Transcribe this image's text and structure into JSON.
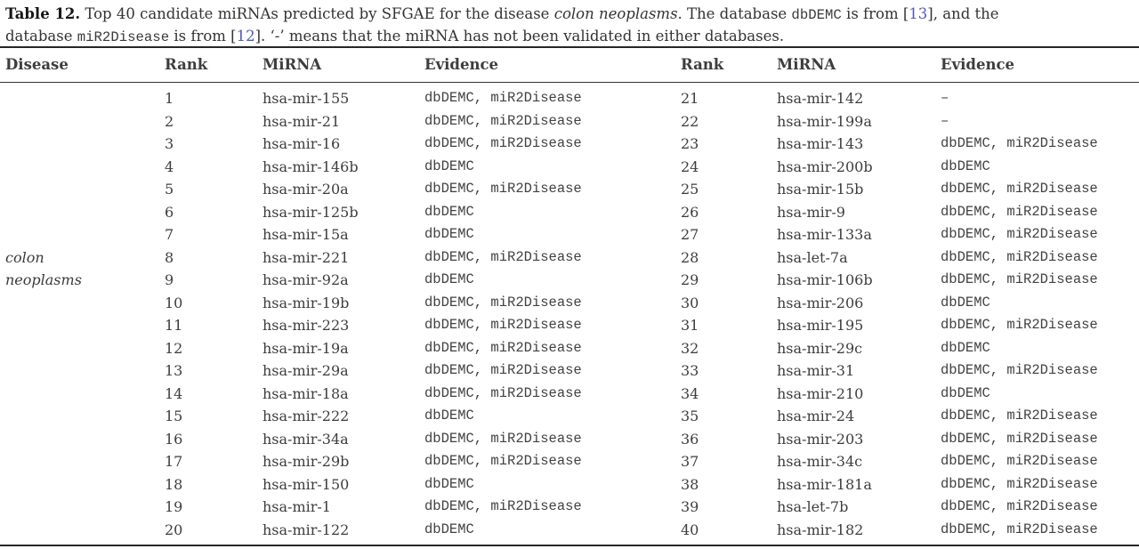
{
  "colors": {
    "link_blue": "#5359b9",
    "rule_dark": "#262626",
    "text_body": "#3d3d3d"
  },
  "caption": {
    "line1": {
      "label": "Table 12.",
      "text_a": " Top 40 candidate miRNAs predicted by SFGAE for the disease ",
      "disease": "colon neoplasms",
      "text_b": ". The database ",
      "db": "dbDEMC",
      "text_c": " is from [",
      "ref": "13",
      "text_d": "], and the"
    },
    "line2": {
      "text_a": "database ",
      "db": "miR2Disease",
      "text_b": " is from [",
      "ref": "12",
      "text_c": "]. ‘-’ means that the miRNA has not been validated in either databases."
    }
  },
  "table": {
    "headers": {
      "disease": "Disease",
      "rank_left": "Rank",
      "mirna_left": "MiRNA",
      "evidence_left": "Evidence",
      "rank_right": "Rank",
      "mirna_right": "MiRNA",
      "evidence_right": "Evidence"
    },
    "rows": [
      {
        "rank": "1",
        "mirna": "hsa-mir-155",
        "evidence": "dbDEMC, miR2Disease",
        "rank2": "21",
        "mirna2": "hsa-mir-142",
        "evidence2": "–"
      },
      {
        "rank": "2",
        "mirna": "hsa-mir-21",
        "evidence": "dbDEMC, miR2Disease",
        "rank2": "22",
        "mirna2": "hsa-mir-199a",
        "evidence2": "–"
      },
      {
        "rank": "3",
        "mirna": "hsa-mir-16",
        "evidence": "dbDEMC, miR2Disease",
        "rank2": "23",
        "mirna2": "hsa-mir-143",
        "evidence2": "dbDEMC, miR2Disease"
      },
      {
        "rank": "4",
        "mirna": "hsa-mir-146b",
        "evidence": "dbDEMC",
        "rank2": "24",
        "mirna2": "hsa-mir-200b",
        "evidence2": "dbDEMC"
      },
      {
        "rank": "5",
        "mirna": "hsa-mir-20a",
        "evidence": "dbDEMC, miR2Disease",
        "rank2": "25",
        "mirna2": "hsa-mir-15b",
        "evidence2": "dbDEMC, miR2Disease"
      },
      {
        "rank": "6",
        "mirna": "hsa-mir-125b",
        "evidence": "dbDEMC",
        "rank2": "26",
        "mirna2": "hsa-mir-9",
        "evidence2": "dbDEMC, miR2Disease"
      },
      {
        "rank": "7",
        "mirna": "hsa-mir-15a",
        "evidence": "dbDEMC",
        "rank2": "27",
        "mirna2": "hsa-mir-133a",
        "evidence2": "dbDEMC, miR2Disease"
      },
      {
        "disease": "colon",
        "rank": "8",
        "mirna": "hsa-mir-221",
        "evidence": "dbDEMC, miR2Disease",
        "rank2": "28",
        "mirna2": "hsa-let-7a",
        "evidence2": "dbDEMC, miR2Disease"
      },
      {
        "disease": "neoplasms",
        "rank": "9",
        "mirna": "hsa-mir-92a",
        "evidence": "dbDEMC",
        "rank2": "29",
        "mirna2": "hsa-mir-106b",
        "evidence2": "dbDEMC, miR2Disease"
      },
      {
        "rank": "10",
        "mirna": "hsa-mir-19b",
        "evidence": "dbDEMC, miR2Disease",
        "rank2": "30",
        "mirna2": "hsa-mir-206",
        "evidence2": "dbDEMC"
      },
      {
        "rank": "11",
        "mirna": "hsa-mir-223",
        "evidence": "dbDEMC, miR2Disease",
        "rank2": "31",
        "mirna2": "hsa-mir-195",
        "evidence2": "dbDEMC, miR2Disease"
      },
      {
        "rank": "12",
        "mirna": "hsa-mir-19a",
        "evidence": "dbDEMC, miR2Disease",
        "rank2": "32",
        "mirna2": "hsa-mir-29c",
        "evidence2": "dbDEMC"
      },
      {
        "rank": "13",
        "mirna": "hsa-mir-29a",
        "evidence": "dbDEMC, miR2Disease",
        "rank2": "33",
        "mirna2": "hsa-mir-31",
        "evidence2": "dbDEMC, miR2Disease"
      },
      {
        "rank": "14",
        "mirna": "hsa-mir-18a",
        "evidence": "dbDEMC, miR2Disease",
        "rank2": "34",
        "mirna2": "hsa-mir-210",
        "evidence2": "dbDEMC"
      },
      {
        "rank": "15",
        "mirna": "hsa-mir-222",
        "evidence": "dbDEMC",
        "rank2": "35",
        "mirna2": "hsa-mir-24",
        "evidence2": "dbDEMC, miR2Disease"
      },
      {
        "rank": "16",
        "mirna": "hsa-mir-34a",
        "evidence": "dbDEMC, miR2Disease",
        "rank2": "36",
        "mirna2": "hsa-mir-203",
        "evidence2": "dbDEMC, miR2Disease"
      },
      {
        "rank": "17",
        "mirna": "hsa-mir-29b",
        "evidence": "dbDEMC, miR2Disease",
        "rank2": "37",
        "mirna2": "hsa-mir-34c",
        "evidence2": "dbDEMC, miR2Disease"
      },
      {
        "rank": "18",
        "mirna": "hsa-mir-150",
        "evidence": "dbDEMC",
        "rank2": "38",
        "mirna2": "hsa-mir-181a",
        "evidence2": "dbDEMC, miR2Disease"
      },
      {
        "rank": "19",
        "mirna": "hsa-mir-1",
        "evidence": "dbDEMC, miR2Disease",
        "rank2": "39",
        "mirna2": "hsa-let-7b",
        "evidence2": "dbDEMC, miR2Disease"
      },
      {
        "rank": "20",
        "mirna": "hsa-mir-122",
        "evidence": "dbDEMC",
        "rank2": "40",
        "mirna2": "hsa-mir-182",
        "evidence2": "dbDEMC, miR2Disease"
      }
    ]
  }
}
